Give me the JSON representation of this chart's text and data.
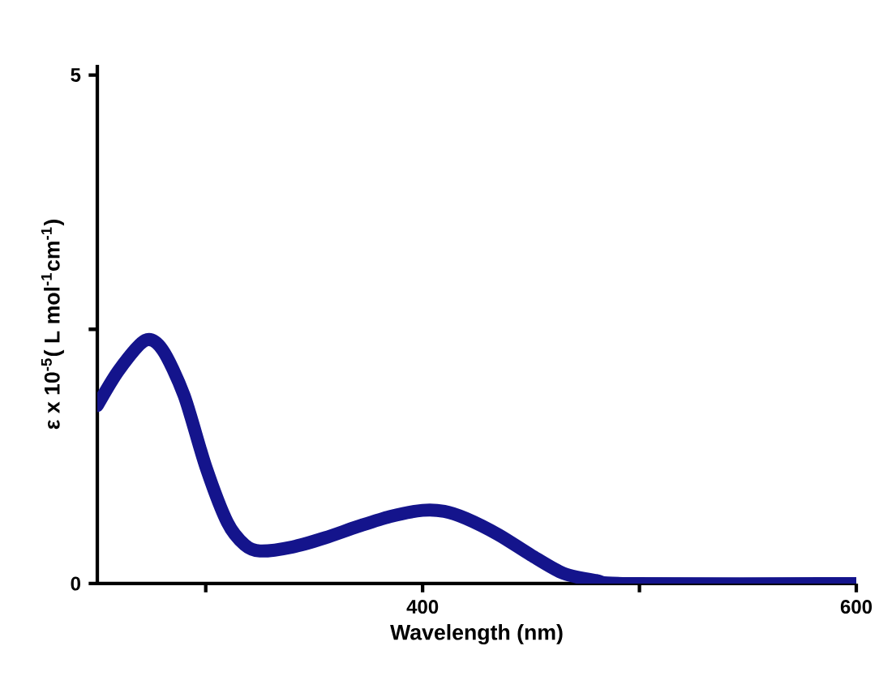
{
  "chart_data": {
    "type": "line",
    "xlabel": "Wavelength (nm)",
    "ylabel": "ε x 10$^{-5}$( L mol$^{-1}$cm$^{-1}$)",
    "x": [
      250,
      260,
      272,
      280,
      290,
      300,
      310,
      318,
      325,
      340,
      355,
      370,
      385,
      400,
      410,
      420,
      435,
      450,
      465,
      480,
      495,
      600
    ],
    "series": [
      {
        "color": "#14148c",
        "values": [
          1.75,
          2.1,
          2.39,
          2.3,
          1.85,
          1.15,
          0.6,
          0.38,
          0.32,
          0.36,
          0.45,
          0.56,
          0.66,
          0.72,
          0.71,
          0.64,
          0.48,
          0.28,
          0.1,
          0.03,
          0,
          0
        ]
      }
    ],
    "xlim": [
      250,
      600
    ],
    "ylim": [
      0,
      5.1
    ],
    "xticks": [
      {
        "value": 300,
        "label": null
      },
      400,
      {
        "value": 500,
        "label": null
      },
      600
    ],
    "yticks": [
      0,
      {
        "value": 2.5,
        "label": null
      },
      5
    ],
    "grid": false
  }
}
